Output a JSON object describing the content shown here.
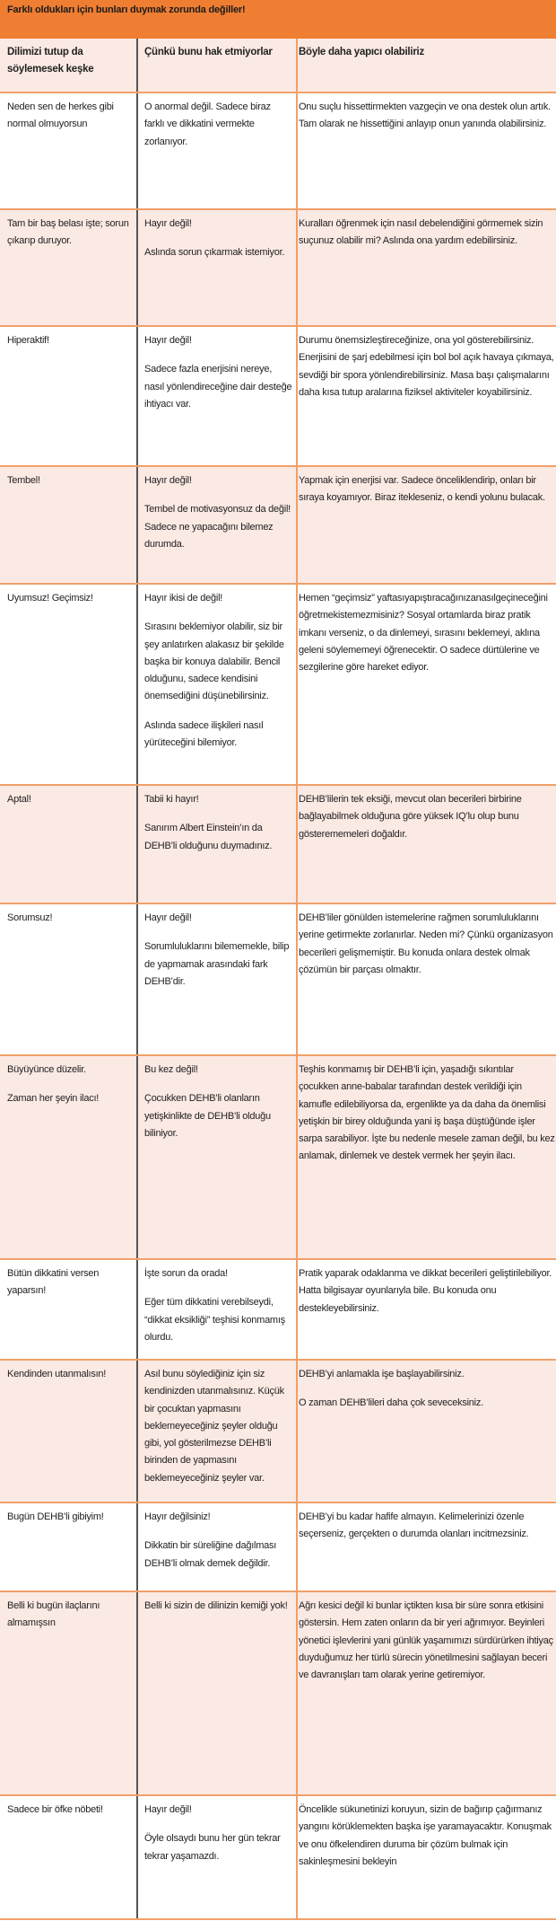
{
  "title": "Farklı oldukları için bunları duymak zorunda değiller!",
  "colors": {
    "header": "#ef7e32",
    "row_alt": "#fbe9e3",
    "border": "#f0a06a"
  },
  "columns": [
    "Dilimizi tutup da söylemesek keşke",
    "Çünkü bunu  hak etmiyorlar",
    "Böyle daha  yapıcı olabiliriz"
  ],
  "rows": [
    {
      "said": [
        "Neden sen de herkes gibi normal olmuyorsun"
      ],
      "why": [
        "O anormal değil. Sadece biraz farklı ve dikkatini  vermekte zorlanıyor."
      ],
      "better": [
        "Onu suçlu hissettirmekten vazgeçin ve ona destek olun artık. Tam olarak ne hissettiğini anlayıp onun yanında olabilirsiniz."
      ]
    },
    {
      "said": [
        "Tam bir baş belası işte; sorun çıkarıp duruyor."
      ],
      "why": [
        "Hayır değil!",
        "Aslında sorun çıkarmak  istemiyor."
      ],
      "better": [
        "Kuralları öğrenmek için nasıl debelendiğini görmemek sizin suçunuz olabilir mi? Aslında ona yardım edebilirsiniz."
      ]
    },
    {
      "said": [
        "Hiperaktif!"
      ],
      "why": [
        "Hayır değil!",
        "Sadece fazla enerjisini nereye, nasıl yönlendireceğine dair desteğe ihtiyacı var."
      ],
      "better": [
        "Durumu önemsizleştireceğinize, ona yol gösterebilirsiniz. Enerjisini de şarj edebilmesi için bol bol açık havaya çıkmaya, sevdiği bir spora yönlendirebilirsiniz. Masa başı çalışmalarını daha kısa tutup  aralarına fiziksel aktiviteler koyabilirsiniz."
      ]
    },
    {
      "said": [
        "Tembel!"
      ],
      "why": [
        "Hayır değil!",
        "Tembel de motivasyonsuz  da değil! Sadece ne yapacağını bilemez durumda."
      ],
      "better": [
        "Yapmak için enerjisi var. Sadece önceliklendirip, onları bir sıraya koyamıyor. Biraz itekleseniz, o kendi yolunu bulacak."
      ]
    },
    {
      "said": [
        "Uyumsuz! Geçimsiz!"
      ],
      "why": [
        "Hayır ikisi de değil!",
        "Sırasını beklemiyor olabilir, siz bir şey anlatırken alakasız bir şekilde başka bir konuya dalabilir. Bencil olduğunu, sadece kendisini önemsediğini düşünebilirsiniz.",
        "Aslında sadece ilişkileri nasıl yürüteceğini bilemiyor."
      ],
      "better": [
        "Hemen “geçimsiz” yaftasıyapıştıracağınızanasılgeçineceğini öğretmekistemezmisiniz? Sosyal ortamlarda biraz pratik imkanı verseniz, o da dinlemeyi, sırasını beklemeyi, aklına geleni söylememeyi öğrenecektir. O sadece dürtülerine ve sezgilerine göre hareket ediyor."
      ]
    },
    {
      "said": [
        "Aptal!"
      ],
      "why": [
        "Tabii ki hayır!",
        "Sanırım Albert Einstein’ın  da DEHB’li olduğunu duymadınız."
      ],
      "better": [
        "DEHB’lilerin tek eksiği, mevcut olan becerileri birbirine bağlayabilmek olduğuna göre yüksek IQ’lu olup bunu gösterememeleri doğaldır."
      ]
    },
    {
      "said": [
        "Sorumsuz!"
      ],
      "why": [
        "Hayır değil!",
        "Sorumluluklarını bilememekle, bilip de yapmamak  arasındaki fark DEHB’dir."
      ],
      "better": [
        "DEHB’liler gönülden istemelerine rağmen sorumluluklarını yerine getirmekte zorlanırlar. Neden mi? Çünkü organizasyon becerileri gelişmemiştir. Bu konuda onlara destek olmak  çözümün bir parçası olmaktır."
      ]
    },
    {
      "said": [
        "Büyüyünce düzelir.",
        "Zaman her şeyin ilacı!"
      ],
      "why": [
        "Bu kez değil!",
        "Çocukken DEHB’li olanların yetişkinlikte de DEHB’li  olduğu biliniyor."
      ],
      "better": [
        "Teşhis konmamış  bir DEHB’li  için, yaşadığı sıkıntılar çocukken anne-babalar tarafından destek verildiği için kamufle edilebiliyorsa da, ergenlikte ya da daha da önemlisi yetişkin bir birey olduğunda yani iş başa düştüğünde işler sarpa sarabiliyor. İşte bu nedenle mesele zaman değil, bu kez anlamak,  dinlemek ve destek vermek her şeyin ilacı."
      ]
    },
    {
      "said": [
        "Bütün dikkatini versen yaparsın!"
      ],
      "why": [
        "İşte sorun da orada!",
        "Eğer tüm dikkatini  verebilseydi, “dikkat eksikliği” teşhisi  konmamış olurdu."
      ],
      "better": [
        "Pratik yaparak odaklanma ve dikkat becerileri geliştirilebiliyor. Hatta bilgisayar oyunlarıyla bile. Bu konuda onu destekleyebilirsiniz."
      ]
    },
    {
      "said": [
        "Kendinden utanmalısın!"
      ],
      "why": [
        "Asıl bunu söylediğiniz için siz kendinizden utanmalısınız.  Küçük bir çocuktan yapmasını beklemeyeceğiniz şeyler olduğu gibi, yol gösterilmezse DEHB’li birinden de yapmasını beklemeyeceğiniz şeyler var."
      ],
      "better": [
        "DEHB’yi anlamakla  işe başlayabilirsiniz.",
        "O zaman  DEHB’lileri daha  çok seveceksiniz."
      ]
    },
    {
      "said": [
        "Bugün DEHB’li  gibiyim!"
      ],
      "why": [
        "Hayır değilsiniz!",
        "Dikkatin bir süreliğine dağılması DEHB’li olmak  demek değildir."
      ],
      "better": [
        "DEHB’yi bu kadar hafife almayın. Kelimelerinizi özenle seçerseniz, gerçekten o durumda olanları incitmezsiniz."
      ]
    },
    {
      "said": [
        "Belli ki bugün ilaçlarını almamışsın"
      ],
      "why": [
        "Belli ki sizin de dilinizin kemiği  yok!"
      ],
      "better": [
        "Ağrı kesici değil ki bunlar içtikten kısa bir süre sonra etkisini göstersin. Hem zaten onların da bir yeri ağrımıyor.  Beyinleri yönetici işlevlerini yani günlük yaşamımızı  sürdürürken ihtiyaç duyduğumuz her türlü sürecin yönetilmesini sağlayan  beceri ve davranışları tam olarak yerine getiremiyor."
      ]
    },
    {
      "said": [
        "Sadece bir öfke nöbeti!"
      ],
      "why": [
        "Hayır değil!",
        "Öyle olsaydı bunu her gün tekrar tekrar yaşamazdı."
      ],
      "better": [
        "Öncelikle sükunetinizi koruyun, sizin de bağırıp çağırmanız yangını körüklemekten başka işe yaramayacaktır. Konuşmak  ve onu öfkelendiren duruma bir çözüm bulmak için sakinleşmesini bekleyin"
      ]
    }
  ]
}
